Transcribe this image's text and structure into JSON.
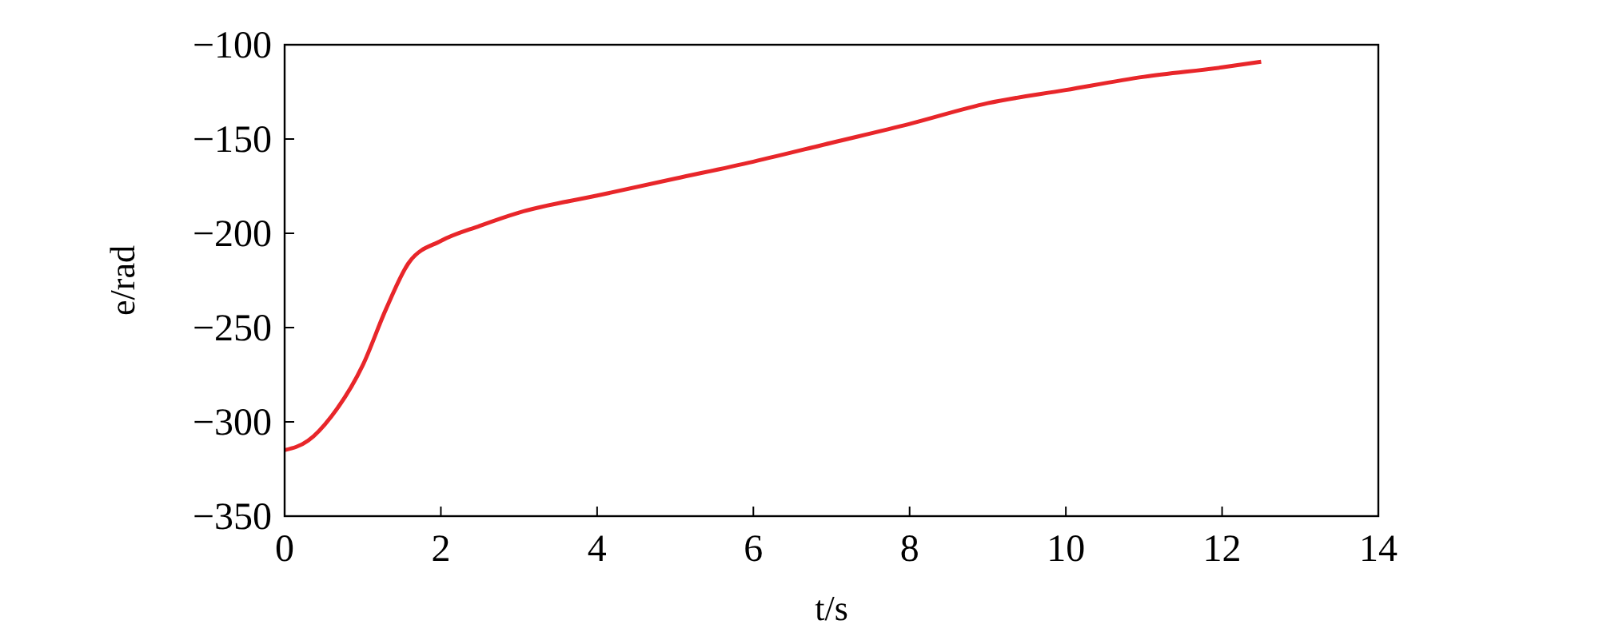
{
  "chart_data": {
    "type": "line",
    "xlabel": "t/s",
    "ylabel": "e/rad",
    "x": [
      0,
      0.3,
      0.6,
      1.0,
      1.3,
      1.6,
      2,
      2.5,
      3,
      4,
      5,
      6,
      7,
      8,
      9,
      10,
      11,
      12,
      12.5
    ],
    "series": [
      {
        "color": "#e8262a",
        "values": [
          -315,
          -310,
          -297,
          -270,
          -240,
          -215,
          -204,
          -196,
          -189,
          -180,
          -171,
          -162,
          -152,
          -142,
          -131,
          -124,
          -117,
          -112,
          -109
        ]
      }
    ],
    "xlim": [
      0,
      14
    ],
    "xticks": [
      0,
      2,
      4,
      6,
      8,
      10,
      12,
      14
    ],
    "ylim": [
      -350,
      -100
    ],
    "yticks": [
      -350,
      -300,
      -250,
      -200,
      -150,
      -100
    ],
    "grid": false,
    "marker": "none",
    "line_style": "solid"
  }
}
